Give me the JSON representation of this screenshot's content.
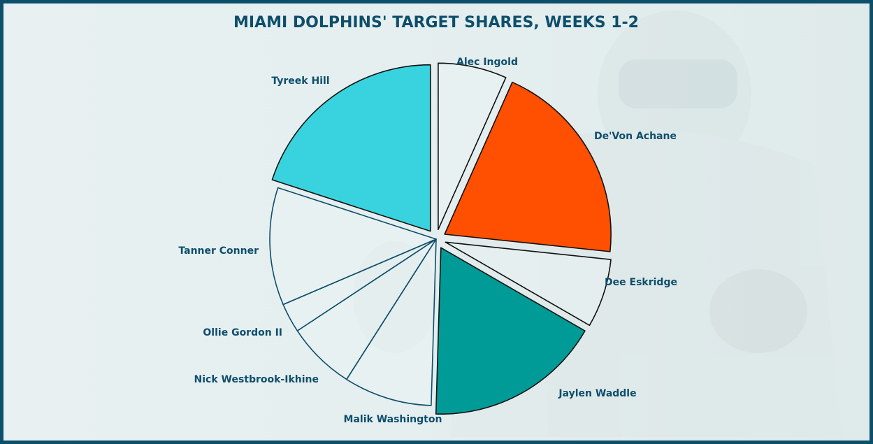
{
  "chart_data": {
    "type": "pie",
    "title": "MIAMI DOLPHINS' TARGET SHARES, WEEKS 1-2",
    "slices": [
      {
        "label": "Alec Ingold",
        "value": 7,
        "color": "#eaf3f4",
        "exploded": true
      },
      {
        "label": "De'Von Achane",
        "value": 21,
        "color": "#ff4f00",
        "exploded": true
      },
      {
        "label": "Dee Eskridge",
        "value": 7,
        "color": "#eaf3f4",
        "exploded": true
      },
      {
        "label": "Jaylen Waddle",
        "value": 18,
        "color": "#009a97",
        "exploded": true
      },
      {
        "label": "Malik Washington",
        "value": 9,
        "color": "#eaf3f4",
        "exploded": false
      },
      {
        "label": "Nick Westbrook-Ikhine",
        "value": 7,
        "color": "#eaf3f4",
        "exploded": false
      },
      {
        "label": "Ollie Gordon II",
        "value": 3,
        "color": "#eaf3f4",
        "exploded": false
      },
      {
        "label": "Tanner Conner",
        "value": 12,
        "color": "#eaf3f4",
        "exploded": false
      },
      {
        "label": "Tyreek Hill",
        "value": 21,
        "color": "#38d3de",
        "exploded": true
      }
    ],
    "legend": "none",
    "data_labels": "outside"
  },
  "theme": {
    "text_color": "#0e4e6c",
    "border_color": "#0d4f6b",
    "background_color": "#e6eff0"
  }
}
